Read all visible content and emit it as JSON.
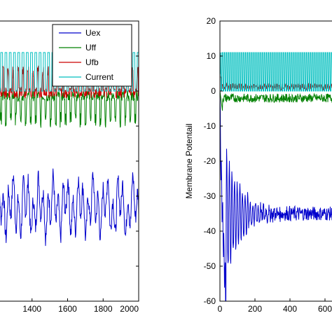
{
  "chart_data": [
    {
      "type": "line",
      "title": "",
      "xlabel": "",
      "ylabel": "",
      "xlim": [
        1200,
        2000
      ],
      "ylim": [
        -60,
        20
      ],
      "xticks": [
        1400,
        1600,
        1800,
        2000
      ],
      "grid": false,
      "legend_position": "top-right",
      "legend": [
        "Uex",
        "Uff",
        "Ufb",
        "Current"
      ],
      "series": [
        {
          "name": "Uex",
          "color": "#0000cc",
          "center": -33,
          "amp": 9,
          "osc_period": 28
        },
        {
          "name": "Uff",
          "color": "#008000",
          "center": -2,
          "amp": 5,
          "osc_period": 28
        },
        {
          "name": "Ufb",
          "color": "#cc0000",
          "center": 1,
          "amp": 4,
          "osc_period": 28
        },
        {
          "name": "Current",
          "color": "#00bfbf",
          "low": 0,
          "high": 11,
          "osc_period": 24
        }
      ]
    },
    {
      "type": "line",
      "title": "",
      "xlabel": "",
      "ylabel": "Membrane Potentail",
      "xlim": [
        0,
        800
      ],
      "ylim": [
        -60,
        20
      ],
      "yticks": [
        -60,
        -50,
        -40,
        -30,
        -20,
        -10,
        0,
        10,
        20
      ],
      "xticks": [
        0,
        200,
        400,
        600
      ],
      "grid": false,
      "series": [
        {
          "name": "Uex",
          "color": "#0000cc",
          "start": 0,
          "dip_min": -60,
          "dip_at": 35,
          "settle": -35
        },
        {
          "name": "Uff",
          "color": "#008000",
          "settle": -2
        },
        {
          "name": "Ufb",
          "color": "#cc0000",
          "settle": 1
        },
        {
          "name": "Current",
          "color": "#00bfbf",
          "low": 0,
          "high": 11,
          "osc_period": 12
        }
      ]
    }
  ]
}
